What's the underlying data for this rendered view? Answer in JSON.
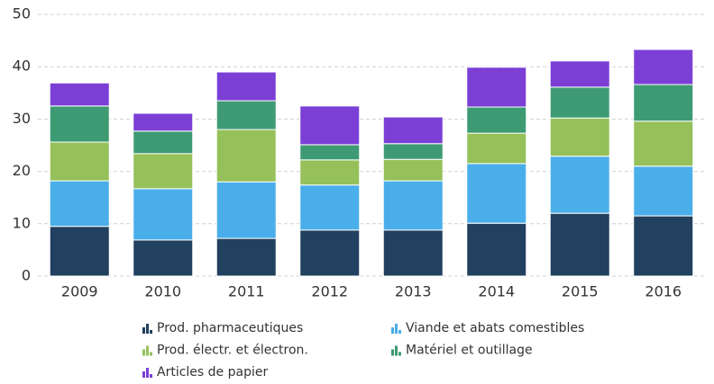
{
  "chart_data": {
    "type": "stacked_bar",
    "categories": [
      "2009",
      "2010",
      "2011",
      "2012",
      "2013",
      "2014",
      "2015",
      "2016"
    ],
    "series": [
      {
        "name": "Prod. pharmaceutiques",
        "color": "#22405f",
        "values": [
          9.5,
          6.9,
          7.2,
          8.8,
          8.8,
          10.1,
          12.0,
          11.5
        ]
      },
      {
        "name": "Viande et abats comestibles",
        "color": "#4aaeea",
        "values": [
          8.7,
          9.8,
          10.8,
          8.6,
          9.4,
          11.4,
          10.9,
          9.5
        ]
      },
      {
        "name": "Prod. électr. et électron.",
        "color": "#95c05a",
        "values": [
          7.4,
          6.7,
          10.0,
          4.8,
          4.1,
          5.8,
          7.3,
          8.6
        ]
      },
      {
        "name": "Matériel et outillage",
        "color": "#3e9a72",
        "values": [
          6.9,
          4.3,
          5.5,
          2.9,
          3.0,
          5.0,
          5.9,
          7.0
        ]
      },
      {
        "name": "Articles de papier",
        "color": "#7b3fd6",
        "values": [
          4.4,
          3.4,
          5.5,
          7.4,
          5.1,
          7.6,
          5.0,
          6.7
        ]
      }
    ],
    "ylim": [
      0,
      50
    ],
    "yticks": [
      0,
      10,
      20,
      30,
      40,
      50
    ],
    "grid": true
  }
}
